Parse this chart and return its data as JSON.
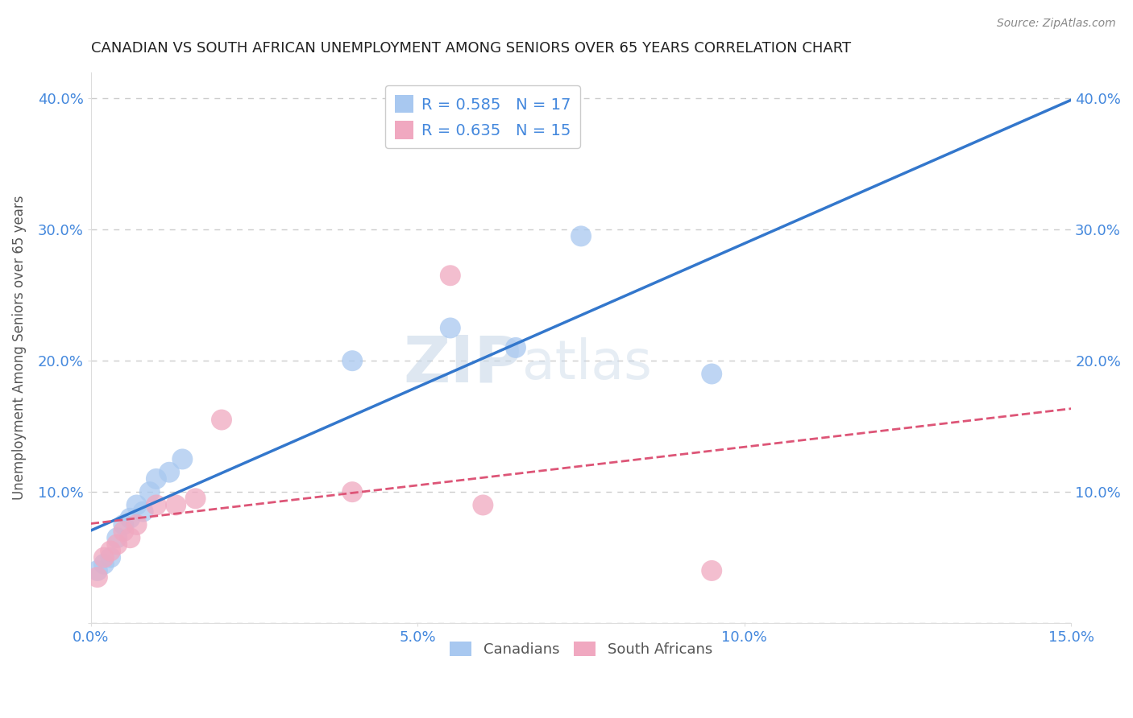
{
  "title": "CANADIAN VS SOUTH AFRICAN UNEMPLOYMENT AMONG SENIORS OVER 65 YEARS CORRELATION CHART",
  "source": "Source: ZipAtlas.com",
  "ylabel": "Unemployment Among Seniors over 65 years",
  "xlabel": "",
  "xlim": [
    0.0,
    0.15
  ],
  "ylim": [
    0.0,
    0.42
  ],
  "xticks": [
    0.0,
    0.05,
    0.1,
    0.15
  ],
  "xticklabels": [
    "0.0%",
    "5.0%",
    "10.0%",
    "15.0%"
  ],
  "yticks": [
    0.0,
    0.1,
    0.2,
    0.3,
    0.4
  ],
  "yticklabels": [
    "",
    "10.0%",
    "20.0%",
    "30.0%",
    "40.0%"
  ],
  "canada_x": [
    0.001,
    0.002,
    0.003,
    0.004,
    0.005,
    0.006,
    0.007,
    0.008,
    0.009,
    0.01,
    0.012,
    0.014,
    0.04,
    0.055,
    0.065,
    0.075,
    0.095
  ],
  "canada_y": [
    0.04,
    0.045,
    0.05,
    0.065,
    0.075,
    0.08,
    0.09,
    0.085,
    0.1,
    0.11,
    0.115,
    0.125,
    0.2,
    0.225,
    0.21,
    0.295,
    0.19
  ],
  "sa_x": [
    0.001,
    0.002,
    0.003,
    0.004,
    0.005,
    0.006,
    0.007,
    0.01,
    0.013,
    0.016,
    0.02,
    0.04,
    0.055,
    0.06,
    0.095
  ],
  "sa_y": [
    0.035,
    0.05,
    0.055,
    0.06,
    0.07,
    0.065,
    0.075,
    0.09,
    0.09,
    0.095,
    0.155,
    0.1,
    0.265,
    0.09,
    0.04
  ],
  "canada_R": "0.585",
  "canada_N": "17",
  "sa_R": "0.635",
  "sa_N": "15",
  "canada_color": "#a8c8f0",
  "sa_color": "#f0a8c0",
  "canada_line_color": "#3377cc",
  "sa_line_color": "#dd5577",
  "watermark_line1": "ZIP",
  "watermark_line2": "atlas",
  "legend_label_canada": "Canadians",
  "legend_label_sa": "South Africans",
  "title_color": "#222222",
  "source_color": "#888888",
  "axis_label_color": "#555555",
  "tick_label_color": "#4488dd",
  "legend_text_color": "#4488dd",
  "background_color": "#ffffff",
  "grid_color": "#cccccc"
}
